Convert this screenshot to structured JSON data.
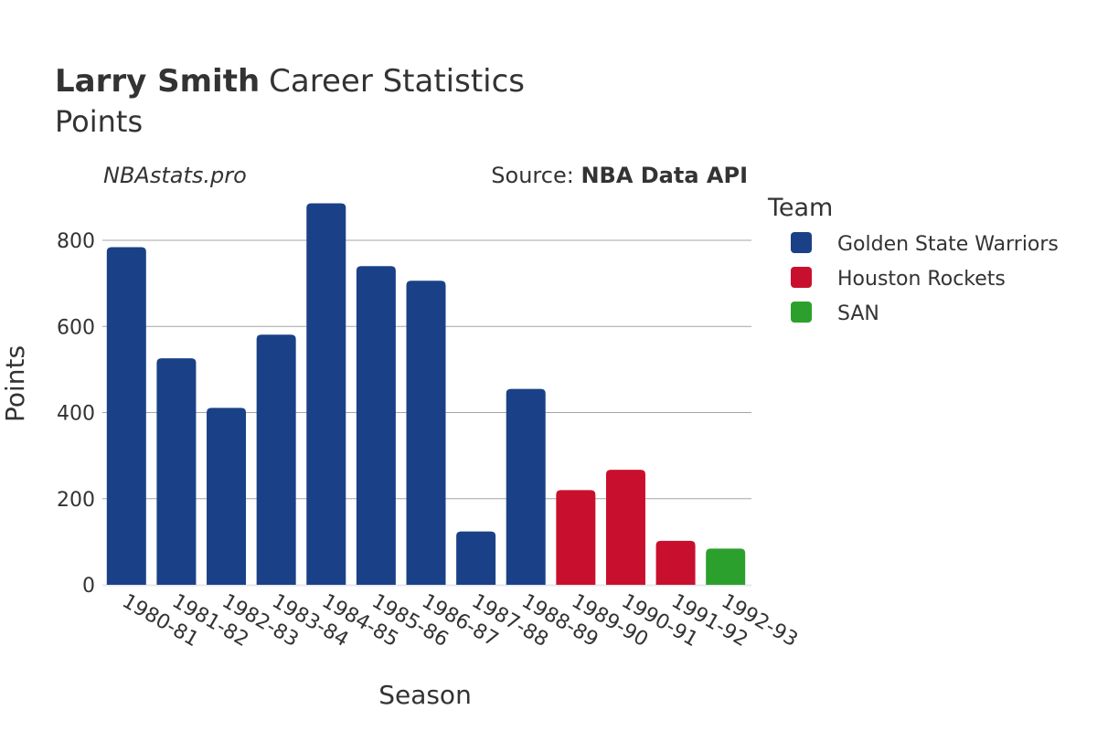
{
  "header": {
    "title_name": "Larry Smith",
    "title_rest": "Career Statistics",
    "subtitle": "Points"
  },
  "watermark": "NBAstats.pro",
  "source": {
    "prefix": "Source: ",
    "name": "NBA Data API"
  },
  "legend": {
    "title": "Team",
    "placement": "right"
  },
  "colors": {
    "Golden State Warriors": "#1a4187",
    "Houston Rockets": "#c8102e",
    "SAN": "#2ca02c",
    "grid": "#a6a6a6",
    "text": "#333333"
  },
  "chart_data": {
    "type": "bar",
    "xlabel": "Season",
    "ylabel": "Points",
    "ylim": [
      0,
      900
    ],
    "yticks": [
      0,
      200,
      400,
      600,
      800
    ],
    "grid": true,
    "categories": [
      "1980-81",
      "1981-82",
      "1982-83",
      "1983-84",
      "1984-85",
      "1985-86",
      "1986-87",
      "1987-88",
      "1988-89",
      "1989-90",
      "1990-91",
      "1991-92",
      "1992-93"
    ],
    "values": [
      784,
      526,
      411,
      581,
      886,
      740,
      706,
      124,
      455,
      220,
      267,
      102,
      84
    ],
    "teams": [
      "Golden State Warriors",
      "Golden State Warriors",
      "Golden State Warriors",
      "Golden State Warriors",
      "Golden State Warriors",
      "Golden State Warriors",
      "Golden State Warriors",
      "Golden State Warriors",
      "Golden State Warriors",
      "Houston Rockets",
      "Houston Rockets",
      "Houston Rockets",
      "SAN"
    ],
    "series": [
      {
        "name": "Golden State Warriors"
      },
      {
        "name": "Houston Rockets"
      },
      {
        "name": "SAN"
      }
    ]
  }
}
